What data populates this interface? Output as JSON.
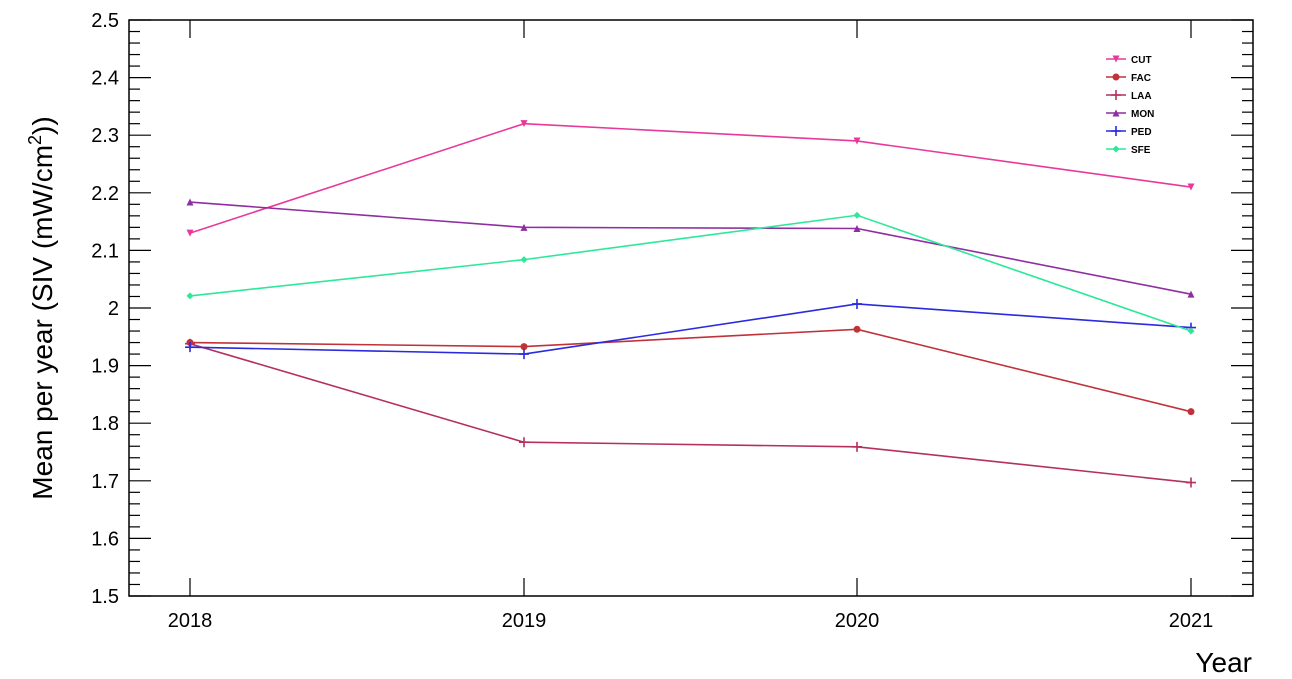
{
  "chart_data": {
    "type": "line",
    "xlabel": "Year",
    "ylabel": "Mean per year (SIV (mW/cm²))",
    "ylabel_main": "Mean per year (SIV (mW/cm",
    "ylabel_sup": "2",
    "ylabel_end": "))",
    "x": [
      "2018",
      "2019",
      "2020",
      "2021"
    ],
    "ylim": [
      1.5,
      2.5
    ],
    "yticks": [
      "1.5",
      "1.6",
      "1.7",
      "1.8",
      "1.9",
      "2",
      "2.1",
      "2.2",
      "2.3",
      "2.4",
      "2.5"
    ],
    "legend_position": "top-right",
    "grid": false,
    "series": [
      {
        "name": "CUT",
        "color": "#e8399a",
        "marker": "triangle-down",
        "values": [
          2.13,
          2.32,
          2.29,
          2.21
        ]
      },
      {
        "name": "FAC",
        "color": "#c0323a",
        "marker": "circle",
        "values": [
          1.94,
          1.933,
          1.963,
          1.82
        ]
      },
      {
        "name": "LAA",
        "color": "#b5305a",
        "marker": "plus",
        "values": [
          1.938,
          1.767,
          1.759,
          1.697
        ]
      },
      {
        "name": "MON",
        "color": "#8e2ea0",
        "marker": "triangle-up",
        "values": [
          2.184,
          2.14,
          2.138,
          2.024
        ]
      },
      {
        "name": "PED",
        "color": "#2a2ae0",
        "marker": "cross",
        "values": [
          1.932,
          1.92,
          2.007,
          1.966
        ]
      },
      {
        "name": "SFE",
        "color": "#2ee89a",
        "marker": "diamond",
        "values": [
          2.021,
          2.084,
          2.161,
          1.96
        ]
      }
    ]
  }
}
